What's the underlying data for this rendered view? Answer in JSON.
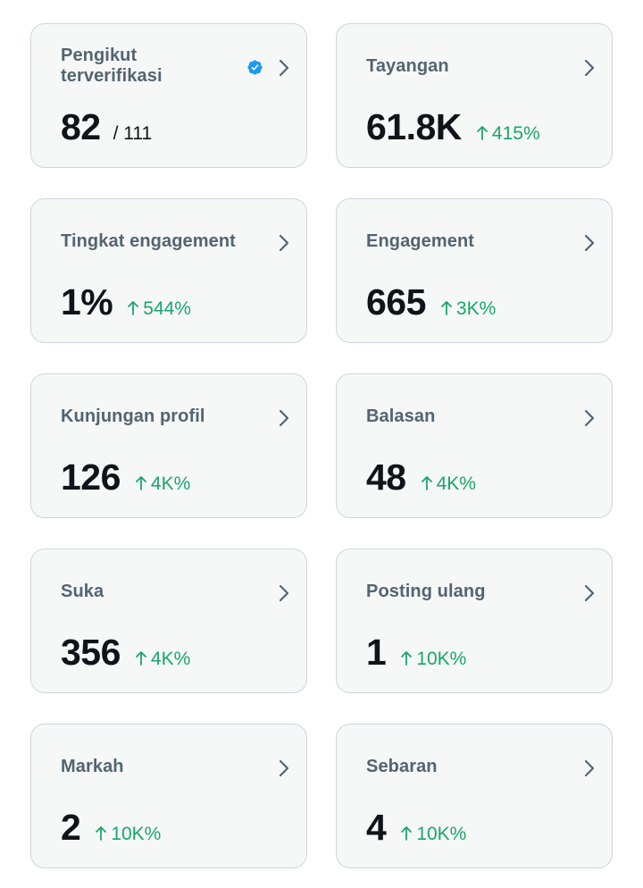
{
  "colors": {
    "card_bg": "#f6f8f8",
    "card_border": "#cdd5da",
    "label": "#536471",
    "value": "#0f1419",
    "positive": "#1aa66a",
    "verified_badge": "#1d9bf0"
  },
  "cards": [
    {
      "label": "Pengikut\nterverifikasi",
      "value": "82",
      "sub": "/ 111",
      "verified_icon": "verified-badge-icon"
    },
    {
      "label": "Tayangan",
      "value": "61.8K",
      "change": "415%"
    },
    {
      "label": "Tingkat engagement",
      "value": "1%",
      "change": "544%"
    },
    {
      "label": "Engagement",
      "value": "665",
      "change": "3K%"
    },
    {
      "label": "Kunjungan profil",
      "value": "126",
      "change": "4K%"
    },
    {
      "label": "Balasan",
      "value": "48",
      "change": "4K%"
    },
    {
      "label": "Suka",
      "value": "356",
      "change": "4K%"
    },
    {
      "label": "Posting ulang",
      "value": "1",
      "change": "10K%"
    },
    {
      "label": "Markah",
      "value": "2",
      "change": "10K%"
    },
    {
      "label": "Sebaran",
      "value": "4",
      "change": "10K%"
    }
  ]
}
